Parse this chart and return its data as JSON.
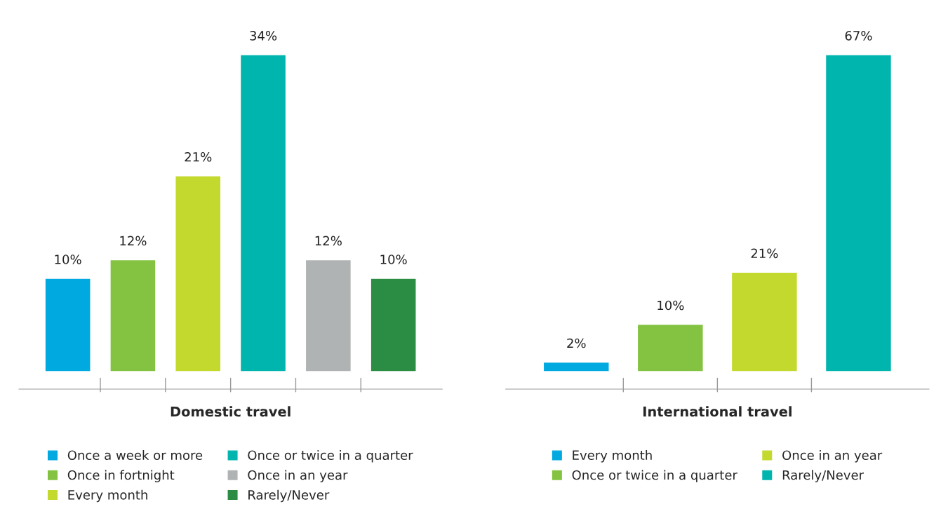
{
  "chart_data": [
    {
      "type": "bar",
      "stacked": true,
      "xlabel": "Domestic travel",
      "categories": [
        null,
        null,
        null,
        null,
        null,
        null
      ],
      "legend": "bottom",
      "grid": false,
      "series": [
        {
          "name": "Once a week or more",
          "color": "#00a9e0",
          "values": [
            10,
            null,
            null,
            null,
            null,
            null
          ],
          "value_labels": [
            "10%",
            null,
            null,
            null,
            null,
            null
          ]
        },
        {
          "name": "Once in fortnight",
          "color": "#84c341",
          "values": [
            null,
            12,
            null,
            null,
            null,
            null
          ],
          "value_labels": [
            null,
            "12%",
            null,
            null,
            null,
            null
          ]
        },
        {
          "name": "Every month",
          "color": "#c4d92e",
          "values": [
            null,
            null,
            21,
            null,
            null,
            null
          ],
          "value_labels": [
            null,
            null,
            "21%",
            null,
            null,
            null
          ]
        },
        {
          "name": "Once or twice in a quarter",
          "color": "#00b5ad",
          "values": [
            null,
            null,
            null,
            34,
            null,
            null
          ],
          "value_labels": [
            null,
            null,
            null,
            "34%",
            null,
            null
          ]
        },
        {
          "name": "Once in an year",
          "color": "#b0b3b3",
          "values": [
            null,
            null,
            null,
            null,
            12,
            null
          ],
          "value_labels": [
            null,
            null,
            null,
            null,
            "12%",
            null
          ]
        },
        {
          "name": "Rarely/Never",
          "color": "#2b8c44",
          "values": [
            null,
            null,
            null,
            null,
            null,
            10
          ],
          "value_labels": [
            null,
            null,
            null,
            null,
            null,
            "10%"
          ]
        }
      ]
    },
    {
      "type": "bar",
      "stacked": true,
      "xlabel": "International travel",
      "categories": [
        null,
        null,
        null,
        null
      ],
      "legend": "bottom",
      "grid": false,
      "series": [
        {
          "name": "Every month",
          "color": "#00a9e0",
          "values": [
            2,
            null,
            null,
            null
          ],
          "value_labels": [
            "2%",
            null,
            null,
            null
          ]
        },
        {
          "name": "Once or twice in a quarter",
          "color": "#84c341",
          "values": [
            null,
            10,
            null,
            null
          ],
          "value_labels": [
            null,
            "10%",
            null,
            null
          ]
        },
        {
          "name": "Once in an year",
          "color": "#c4d92e",
          "values": [
            null,
            null,
            21,
            null
          ],
          "value_labels": [
            null,
            null,
            "21%",
            null
          ]
        },
        {
          "name": "Rarely/Never",
          "color": "#00b5ad",
          "values": [
            null,
            null,
            null,
            67
          ],
          "value_labels": [
            null,
            null,
            null,
            "67%"
          ]
        }
      ]
    }
  ]
}
